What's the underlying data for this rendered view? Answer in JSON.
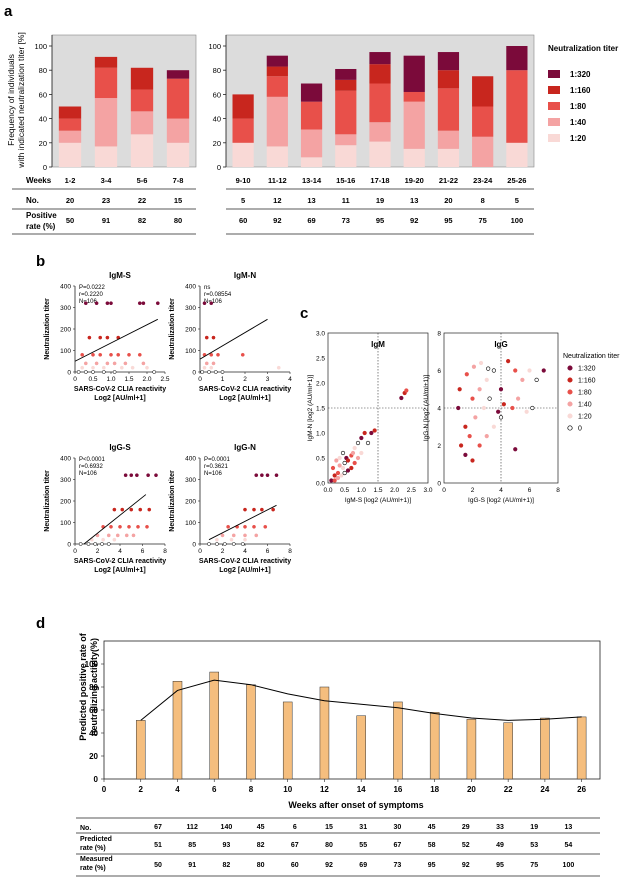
{
  "panels": {
    "a": "a",
    "b": "b",
    "c": "c",
    "d": "d"
  },
  "colors": {
    "t320": "#7b0a3a",
    "t160": "#c8261e",
    "t80": "#e8504a",
    "t40": "#f4a3a3",
    "t20": "#f9d9d6",
    "panel_bg": "#dcdcdc",
    "bar_d": "#f5be7e"
  },
  "panel_a": {
    "ylabel_line1": "Frequency of individuals",
    "ylabel_line2": "with indicated neutralization titer [%]",
    "legend_title": "Neutralization titer",
    "row_labels": {
      "weeks": "Weeks",
      "no": "No.",
      "pos1": "Positive",
      "pos2": "rate (%)"
    }
  },
  "panel_b": {
    "xlabel_line1": "SARS-CoV-2 CLIA reactivity",
    "xlabel_line2": "Log2 [AU/ml+1]",
    "ylabel": "Neutralization titer"
  },
  "panel_c": {
    "legend_title": "Neutralization titer",
    "legend": [
      "1:320",
      "1:160",
      "1:80",
      "1:40",
      "1:20",
      "0"
    ]
  },
  "panel_d": {
    "ylabel_line1": "Predicted positive rate of",
    "ylabel_line2": "neutralizing activity(%)",
    "xlabel": "Weeks after onset of symptoms",
    "row_labels": {
      "no": "No.",
      "pred1": "Predicted",
      "pred2": "rate (%)",
      "meas1": "Measured",
      "meas2": "rate (%)"
    }
  },
  "chart_data": [
    {
      "id": "a",
      "type": "bar",
      "stacked": true,
      "ylim": [
        0,
        100
      ],
      "groups": [
        {
          "categories": [
            "1-2",
            "3-4",
            "5-6",
            "7-8"
          ]
        },
        {
          "categories": [
            "9-10",
            "11-12",
            "13-14",
            "15-16",
            "17-18",
            "19-20",
            "21-22",
            "23-24",
            "25-26"
          ]
        }
      ],
      "categories": [
        "1-2",
        "3-4",
        "5-6",
        "7-8",
        "9-10",
        "11-12",
        "13-14",
        "15-16",
        "17-18",
        "19-20",
        "21-22",
        "23-24",
        "25-26"
      ],
      "series": [
        {
          "name": "1:20",
          "values": [
            20,
            17,
            27,
            20,
            20,
            17,
            8,
            18,
            21,
            15,
            15,
            0,
            20
          ]
        },
        {
          "name": "1:40",
          "values": [
            10,
            40,
            19,
            20,
            0,
            41,
            23,
            9,
            16,
            39,
            15,
            25,
            0
          ]
        },
        {
          "name": "1:80",
          "values": [
            10,
            25,
            18,
            33,
            20,
            17,
            23,
            36,
            32,
            8,
            35,
            25,
            60
          ]
        },
        {
          "name": "1:160",
          "values": [
            10,
            9,
            18,
            0,
            20,
            8,
            0,
            9,
            16,
            0,
            15,
            25,
            0
          ]
        },
        {
          "name": "1:320",
          "values": [
            0,
            0,
            0,
            7,
            0,
            9,
            15,
            9,
            10,
            30,
            15,
            0,
            20
          ]
        }
      ],
      "yticks": [
        0,
        20,
        40,
        60,
        80,
        100
      ],
      "no": [
        20,
        23,
        22,
        15,
        5,
        12,
        13,
        11,
        19,
        13,
        20,
        8,
        5
      ],
      "positive_rate": [
        50,
        91,
        82,
        80,
        60,
        92,
        69,
        73,
        95,
        92,
        95,
        75,
        100
      ]
    },
    {
      "id": "b",
      "type": "scatter",
      "xlim": [
        0,
        4
      ],
      "ylim": [
        0,
        400
      ],
      "yticks": [
        0,
        100,
        200,
        300,
        400
      ],
      "plots": [
        {
          "title": "IgM-S",
          "stats": [
            "P=0.0222",
            "r=0.2220",
            "N=106"
          ],
          "xlim": [
            0,
            2.5
          ],
          "xticks": [
            "0",
            "0.5",
            "1.0",
            "1.5",
            "2.0",
            "2.5"
          ],
          "line": [
            [
              0,
              50
            ],
            [
              2.3,
              245
            ]
          ]
        },
        {
          "title": "IgM-N",
          "stats": [
            "ns",
            "r=0.08554",
            "N=106"
          ],
          "xlim": [
            0,
            4
          ],
          "xticks": [
            "0",
            "1",
            "2",
            "3",
            "4"
          ],
          "line": [
            [
              0,
              60
            ],
            [
              3.0,
              245
            ]
          ]
        },
        {
          "title": "IgG-S",
          "stats": [
            "P<0.0001",
            "r=0.6932",
            "N=106"
          ],
          "xlim": [
            0,
            8
          ],
          "xticks": [
            "0",
            "2",
            "4",
            "6",
            "8"
          ],
          "line": [
            [
              0.8,
              0
            ],
            [
              6.3,
              230
            ]
          ]
        },
        {
          "title": "IgG-N",
          "stats": [
            "P=0.0001",
            "r=0.3621",
            "N=106"
          ],
          "xlim": [
            0,
            8
          ],
          "xticks": [
            "0",
            "2",
            "4",
            "6",
            "8"
          ],
          "line": [
            [
              0.8,
              20
            ],
            [
              6.8,
              180
            ]
          ]
        }
      ]
    },
    {
      "id": "c",
      "type": "scatter",
      "plots": [
        {
          "title": "IgM",
          "xlabel": "IgM-S [log2 (AU/ml+1)]",
          "ylabel": "IgM-N [log2 (AU/ml+1)]",
          "xlim": [
            0,
            3.0
          ],
          "ylim": [
            0,
            3.0
          ],
          "xticks": [
            "0.0",
            "0.5",
            "1.0",
            "1.5",
            "2.0",
            "2.5",
            "3.0"
          ],
          "yticks": [
            "0.0",
            "0.5",
            "1.0",
            "1.5",
            "2.0",
            "2.5",
            "3.0"
          ],
          "threshold": [
            1.5,
            1.5
          ]
        },
        {
          "title": "IgG",
          "xlabel": "IgG-S [log2 (AU/ml+1)]",
          "ylabel": "IgG-N [log2 (AU/ml+1)]",
          "xlim": [
            0,
            8
          ],
          "ylim": [
            0,
            8
          ],
          "xticks": [
            "0",
            "2",
            "4",
            "6",
            "8"
          ],
          "yticks": [
            "0",
            "2",
            "4",
            "6",
            "8"
          ],
          "threshold": [
            4,
            4
          ]
        }
      ]
    },
    {
      "id": "d",
      "type": "bar",
      "x": [
        2,
        4,
        6,
        8,
        10,
        12,
        14,
        16,
        18,
        20,
        22,
        24,
        26
      ],
      "xticks": [
        0,
        2,
        4,
        6,
        8,
        10,
        12,
        14,
        16,
        18,
        20,
        22,
        24,
        26
      ],
      "ylim": [
        0,
        120
      ],
      "yticks": [
        0,
        20,
        40,
        60,
        80,
        100
      ],
      "series": [
        {
          "type": "bar",
          "values": [
            51,
            85,
            93,
            82,
            67,
            80,
            55,
            67,
            58,
            52,
            49,
            53,
            54
          ]
        },
        {
          "type": "line",
          "values": [
            51,
            77,
            86,
            82,
            74,
            68,
            65,
            62,
            57,
            53,
            51,
            52,
            54
          ]
        }
      ],
      "no": [
        67,
        112,
        140,
        45,
        6,
        15,
        31,
        30,
        45,
        29,
        33,
        19,
        13
      ],
      "predicted_rate": [
        51,
        85,
        93,
        82,
        67,
        80,
        55,
        67,
        58,
        52,
        49,
        53,
        54
      ],
      "measured_rate": [
        50,
        91,
        82,
        80,
        60,
        92,
        69,
        73,
        95,
        92,
        95,
        75,
        100
      ]
    }
  ]
}
